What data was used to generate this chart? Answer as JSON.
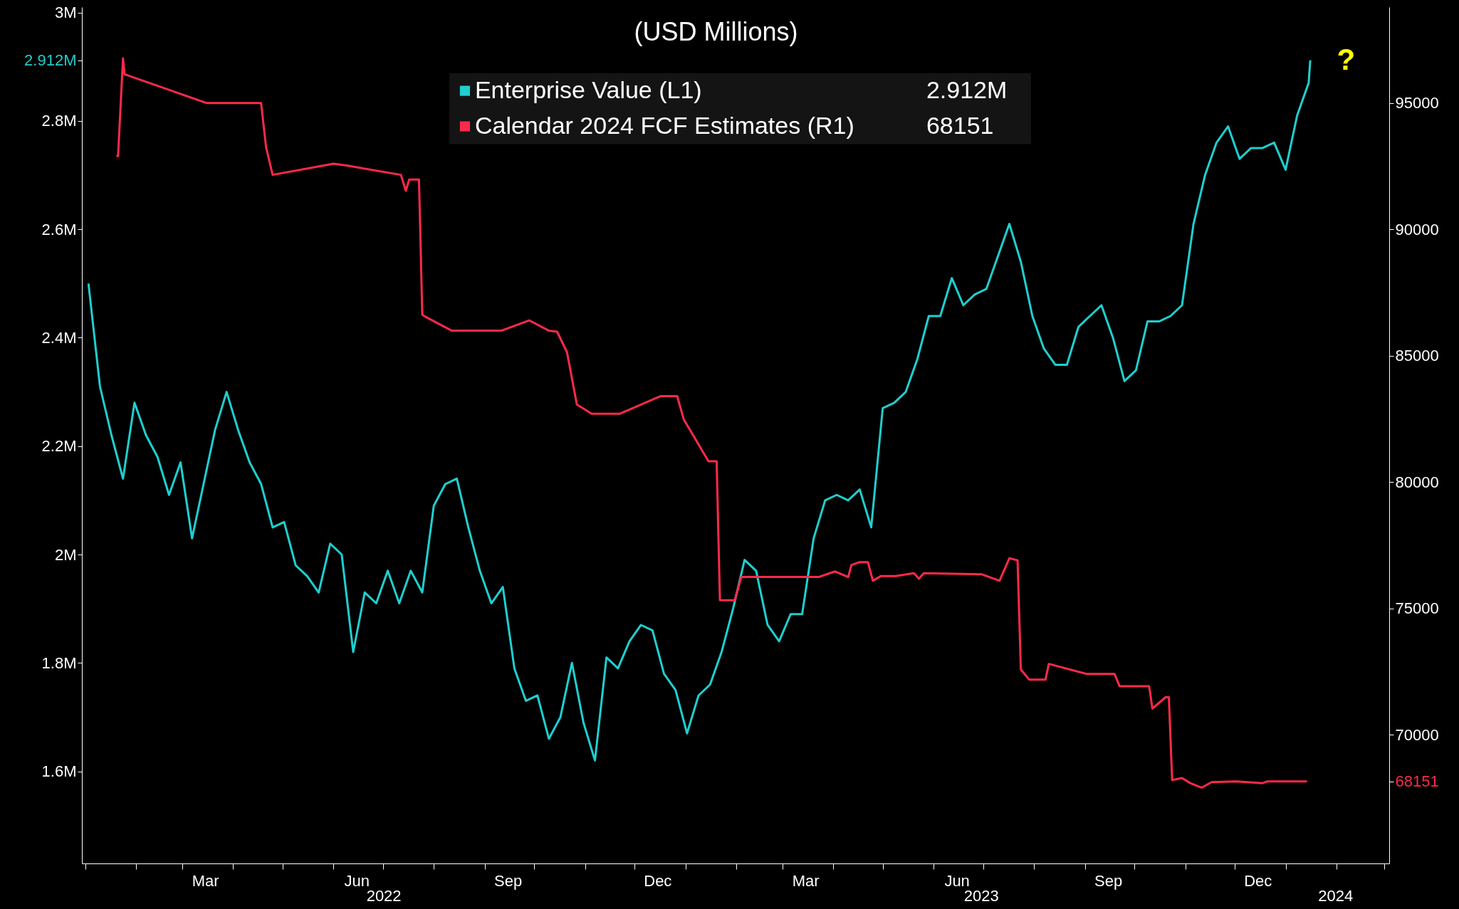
{
  "chart_data": {
    "type": "line",
    "title": "(USD Millions)",
    "legend": "top",
    "grid": false,
    "annotations": [
      "?",
      "2022",
      "2023",
      "2024",
      "2.912M",
      "68151"
    ],
    "xlim": [
      "2021-12-30",
      "2024-03-04"
    ],
    "xticks": [
      {
        "value": "2022-01-01",
        "label": null
      },
      {
        "value": "2022-02-01",
        "label": null
      },
      {
        "value": "2022-03-01",
        "label": null
      },
      {
        "value": "2022-03-15",
        "label": "Mar"
      },
      {
        "value": "2022-04-01",
        "label": null
      },
      {
        "value": "2022-05-01",
        "label": null
      },
      {
        "value": "2022-06-01",
        "label": null
      },
      {
        "value": "2022-06-15",
        "label": "Jun"
      },
      {
        "value": "2022-07-01",
        "label": null
      },
      {
        "value": "2022-08-01",
        "label": null
      },
      {
        "value": "2022-09-01",
        "label": null
      },
      {
        "value": "2022-09-15",
        "label": "Sep"
      },
      {
        "value": "2022-10-01",
        "label": null
      },
      {
        "value": "2022-11-01",
        "label": null
      },
      {
        "value": "2022-12-01",
        "label": null
      },
      {
        "value": "2022-12-15",
        "label": "Dec"
      },
      {
        "value": "2023-01-01",
        "label": null
      },
      {
        "value": "2023-02-01",
        "label": null
      },
      {
        "value": "2023-03-01",
        "label": null
      },
      {
        "value": "2023-03-15",
        "label": "Mar"
      },
      {
        "value": "2023-04-01",
        "label": null
      },
      {
        "value": "2023-05-01",
        "label": null
      },
      {
        "value": "2023-06-01",
        "label": null
      },
      {
        "value": "2023-06-15",
        "label": "Jun"
      },
      {
        "value": "2023-07-01",
        "label": null
      },
      {
        "value": "2023-08-01",
        "label": null
      },
      {
        "value": "2023-09-01",
        "label": null
      },
      {
        "value": "2023-09-15",
        "label": "Sep"
      },
      {
        "value": "2023-10-01",
        "label": null
      },
      {
        "value": "2023-11-01",
        "label": null
      },
      {
        "value": "2023-12-01",
        "label": null
      },
      {
        "value": "2023-12-15",
        "label": "Dec"
      },
      {
        "value": "2024-01-01",
        "label": null
      },
      {
        "value": "2024-02-01",
        "label": null
      },
      {
        "value": "2024-03-01",
        "label": null
      }
    ],
    "ylim": [
      1.43,
      3.01
    ],
    "yticks": [
      {
        "value": 1.6,
        "label": "1.6M"
      },
      {
        "value": 1.8,
        "label": "1.8M"
      },
      {
        "value": 2.0,
        "label": "2M"
      },
      {
        "value": 2.2,
        "label": "2.2M"
      },
      {
        "value": 2.4,
        "label": "2.4M"
      },
      {
        "value": 2.6,
        "label": "2.6M"
      },
      {
        "value": 2.8,
        "label": "2.8M"
      },
      {
        "value": 2.912,
        "label": "2.912M"
      },
      {
        "value": 3.0,
        "label": "3M"
      }
    ],
    "y2lim": [
      64900,
      98800
    ],
    "y2ticks": [
      {
        "value": 68151,
        "label": "68151"
      },
      70000,
      75000,
      80000,
      85000,
      90000,
      95000
    ],
    "series": [
      {
        "name": "Enterprise Value (L1)",
        "color": "#1fcfcf",
        "axis": "y",
        "x": [
          "2022-01-03",
          "2022-01-10",
          "2022-01-17",
          "2022-01-24",
          "2022-01-31",
          "2022-02-07",
          "2022-02-14",
          "2022-02-21",
          "2022-02-28",
          "2022-03-07",
          "2022-03-14",
          "2022-03-21",
          "2022-03-28",
          "2022-04-04",
          "2022-04-11",
          "2022-04-18",
          "2022-04-25",
          "2022-05-02",
          "2022-05-09",
          "2022-05-16",
          "2022-05-23",
          "2022-05-30",
          "2022-06-06",
          "2022-06-13",
          "2022-06-20",
          "2022-06-27",
          "2022-07-04",
          "2022-07-11",
          "2022-07-18",
          "2022-07-25",
          "2022-08-01",
          "2022-08-08",
          "2022-08-15",
          "2022-08-22",
          "2022-08-29",
          "2022-09-05",
          "2022-09-12",
          "2022-09-19",
          "2022-09-26",
          "2022-10-03",
          "2022-10-10",
          "2022-10-17",
          "2022-10-24",
          "2022-10-31",
          "2022-11-07",
          "2022-11-14",
          "2022-11-21",
          "2022-11-28",
          "2022-12-05",
          "2022-12-12",
          "2022-12-19",
          "2022-12-26",
          "2023-01-02",
          "2023-01-09",
          "2023-01-16",
          "2023-01-23",
          "2023-01-30",
          "2023-02-06",
          "2023-02-13",
          "2023-02-20",
          "2023-02-27",
          "2023-03-06",
          "2023-03-13",
          "2023-03-20",
          "2023-03-27",
          "2023-04-03",
          "2023-04-10",
          "2023-04-17",
          "2023-04-24",
          "2023-05-01",
          "2023-05-08",
          "2023-05-15",
          "2023-05-22",
          "2023-05-29",
          "2023-06-05",
          "2023-06-12",
          "2023-06-19",
          "2023-06-26",
          "2023-07-03",
          "2023-07-10",
          "2023-07-17",
          "2023-07-24",
          "2023-07-31",
          "2023-08-07",
          "2023-08-14",
          "2023-08-21",
          "2023-08-28",
          "2023-09-04",
          "2023-09-11",
          "2023-09-18",
          "2023-09-25",
          "2023-10-02",
          "2023-10-09",
          "2023-10-16",
          "2023-10-23",
          "2023-10-30",
          "2023-11-06",
          "2023-11-13",
          "2023-11-20",
          "2023-11-27",
          "2023-12-04",
          "2023-12-11",
          "2023-12-18",
          "2023-12-25",
          "2024-01-01",
          "2024-01-08",
          "2024-01-15",
          "2024-01-16"
        ],
        "values": [
          2.5,
          2.31,
          2.22,
          2.14,
          2.28,
          2.22,
          2.18,
          2.11,
          2.17,
          2.03,
          2.13,
          2.23,
          2.3,
          2.23,
          2.17,
          2.13,
          2.05,
          2.06,
          1.98,
          1.96,
          1.93,
          2.02,
          2.0,
          1.82,
          1.93,
          1.91,
          1.97,
          1.91,
          1.97,
          1.93,
          2.09,
          2.13,
          2.14,
          2.05,
          1.97,
          1.91,
          1.94,
          1.79,
          1.73,
          1.74,
          1.66,
          1.7,
          1.8,
          1.69,
          1.62,
          1.81,
          1.79,
          1.84,
          1.87,
          1.86,
          1.78,
          1.75,
          1.67,
          1.74,
          1.76,
          1.82,
          1.9,
          1.99,
          1.97,
          1.87,
          1.84,
          1.89,
          1.89,
          2.03,
          2.1,
          2.11,
          2.1,
          2.12,
          2.05,
          2.27,
          2.28,
          2.3,
          2.36,
          2.44,
          2.44,
          2.51,
          2.46,
          2.48,
          2.49,
          2.55,
          2.61,
          2.54,
          2.44,
          2.38,
          2.35,
          2.35,
          2.42,
          2.44,
          2.46,
          2.4,
          2.32,
          2.34,
          2.43,
          2.43,
          2.44,
          2.46,
          2.61,
          2.7,
          2.76,
          2.79,
          2.73,
          2.75,
          2.75,
          2.76,
          2.71,
          2.81,
          2.87,
          2.912
        ]
      },
      {
        "name": "Calendar 2024 FCF Estimates (R1)",
        "color": "#ff2a4a",
        "axis": "y2",
        "x": [
          "2022-01-20",
          "2022-01-21",
          "2022-01-24",
          "2022-01-25",
          "2022-03-16",
          "2022-04-18",
          "2022-04-21",
          "2022-04-25",
          "2022-06-01",
          "2022-06-09",
          "2022-07-12",
          "2022-07-15",
          "2022-07-17",
          "2022-07-23",
          "2022-07-25",
          "2022-07-27",
          "2022-08-12",
          "2022-09-11",
          "2022-09-28",
          "2022-10-10",
          "2022-10-15",
          "2022-10-21",
          "2022-10-27",
          "2022-11-05",
          "2022-11-22",
          "2022-12-17",
          "2022-12-27",
          "2022-12-31",
          "2023-01-06",
          "2023-01-15",
          "2023-01-20",
          "2023-01-22",
          "2023-01-31",
          "2023-02-04",
          "2023-03-23",
          "2023-04-02",
          "2023-04-10",
          "2023-04-12",
          "2023-04-17",
          "2023-04-22",
          "2023-04-25",
          "2023-04-30",
          "2023-05-09",
          "2023-05-20",
          "2023-05-23",
          "2023-05-26",
          "2023-06-30",
          "2023-07-11",
          "2023-07-17",
          "2023-07-22",
          "2023-07-24",
          "2023-07-29",
          "2023-08-08",
          "2023-08-10",
          "2023-09-02",
          "2023-09-19",
          "2023-09-22",
          "2023-10-10",
          "2023-10-12",
          "2023-10-20",
          "2023-10-22",
          "2023-10-24",
          "2023-10-30",
          "2023-11-04",
          "2023-11-11",
          "2023-11-17",
          "2023-12-02",
          "2023-12-18",
          "2023-12-21",
          "2024-01-14"
        ],
        "values": [
          92900,
          92900,
          96770,
          96140,
          95000,
          95000,
          93260,
          92160,
          92600,
          92530,
          92160,
          91530,
          91970,
          91970,
          86620,
          86540,
          85990,
          85990,
          86400,
          85990,
          85950,
          85140,
          83070,
          82700,
          82700,
          83400,
          83400,
          82480,
          81820,
          80820,
          80820,
          75320,
          75320,
          76240,
          76240,
          76460,
          76240,
          76720,
          76830,
          76830,
          76090,
          76280,
          76280,
          76390,
          76170,
          76390,
          76350,
          76090,
          76980,
          76900,
          72580,
          72180,
          72180,
          72800,
          72400,
          72400,
          71920,
          71920,
          71030,
          71480,
          71480,
          68200,
          68280,
          68080,
          67900,
          68120,
          68150,
          68080,
          68151,
          68151
        ]
      }
    ]
  }
}
